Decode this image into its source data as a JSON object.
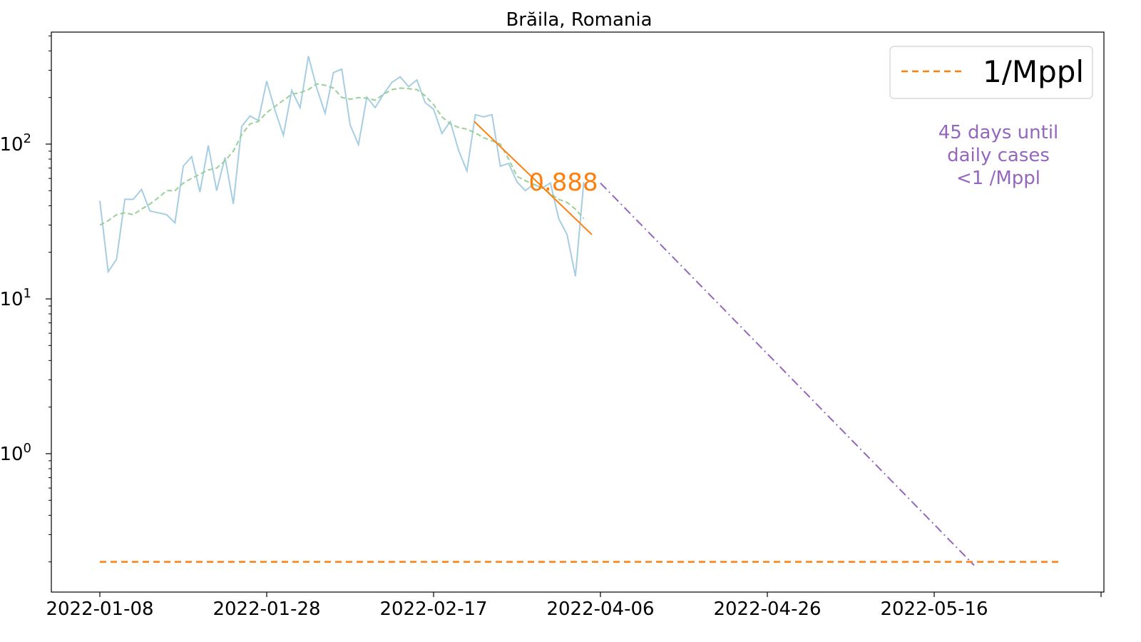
{
  "chart_data": {
    "type": "line",
    "title": "Brăila, Romania",
    "xlabel": "",
    "ylabel": "",
    "yscale": "log",
    "grid": false,
    "legend_placement": "top-right",
    "x_tick_labels": [
      "2022-01-08",
      "2022-01-28",
      "2022-02-17",
      "2022-04-06",
      "2022-04-26",
      "2022-05-16"
    ],
    "y_tick_labels": [
      {
        "value": 1,
        "base": "10",
        "exp": "0"
      },
      {
        "value": 10,
        "base": "10",
        "exp": "1"
      },
      {
        "value": 100,
        "base": "10",
        "exp": "2"
      }
    ],
    "colors": {
      "daily": "#a6cee3",
      "smoothed": "#98d098",
      "fit": "#ff7f0e",
      "threshold": "#ff7f0e",
      "projection": "#9467bd"
    },
    "daily_cases": [
      43,
      15,
      18,
      44,
      44,
      51,
      37,
      36,
      35,
      31,
      72,
      83,
      49,
      98,
      50,
      82,
      41,
      130,
      152,
      142,
      255,
      165,
      114,
      222,
      172,
      370,
      230,
      158,
      290,
      305,
      133,
      99,
      201,
      172,
      210,
      250,
      272,
      235,
      260,
      185,
      168,
      117,
      140,
      91,
      67,
      155,
      150,
      155,
      72,
      75,
      57,
      50,
      55,
      52,
      56,
      33,
      26,
      14,
      57
    ],
    "smoothed_cases": [
      30,
      32,
      35,
      36,
      35,
      38,
      41,
      45,
      50,
      50,
      56,
      60,
      64,
      68,
      70,
      78,
      90,
      115,
      135,
      140,
      160,
      175,
      192,
      210,
      215,
      225,
      245,
      240,
      230,
      200,
      195,
      200,
      198,
      192,
      210,
      225,
      230,
      228,
      225,
      205,
      180,
      150,
      135,
      128,
      125,
      118,
      110,
      105,
      100,
      80,
      62,
      58,
      55,
      52,
      48,
      44,
      42,
      38,
      33
    ],
    "fit_line": {
      "start": 140,
      "end": 26
    },
    "projection": {
      "start": 56,
      "end": 0.19
    },
    "threshold_value": 0.2,
    "rate_label": "0.888",
    "annotation": "45 days until\ndaily cases\n<1 /Mppl",
    "legend": [
      {
        "label": "1/Mppl",
        "style": "dashed",
        "color": "#ff7f0e"
      }
    ]
  }
}
